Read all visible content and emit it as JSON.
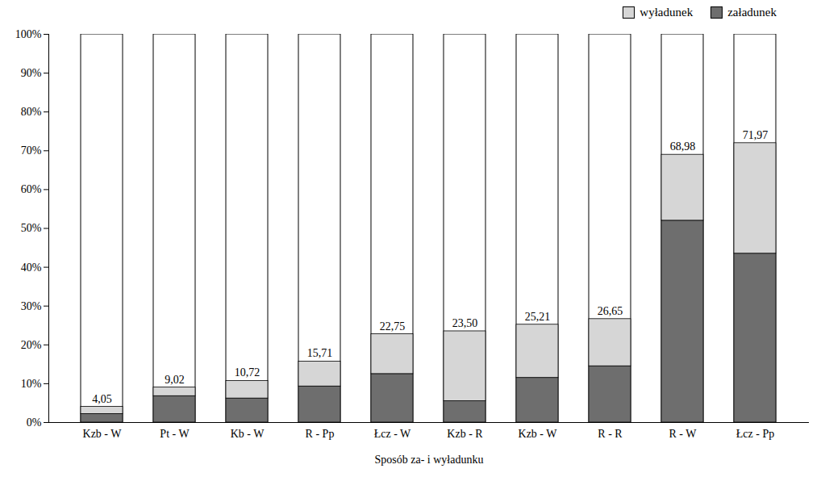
{
  "chart_data": {
    "type": "bar",
    "stacked": true,
    "x_label": "Sposób za- i wyładunku",
    "categories": [
      "Kzb - W",
      "Pt - W",
      "Kb - W",
      "R - Pp",
      "Łcz - W",
      "Kzb - R",
      "Kzb - W",
      "R - R",
      "R - W",
      "Łcz - Pp"
    ],
    "series": [
      {
        "name": "załadunek",
        "color": "#6e6e6e",
        "values": [
          2.2,
          6.8,
          6.2,
          9.3,
          12.5,
          5.5,
          11.5,
          14.5,
          52.0,
          43.5
        ]
      },
      {
        "name": "wyładunek",
        "color": "#d6d6d6",
        "values": [
          1.85,
          2.22,
          4.52,
          6.41,
          10.25,
          18.0,
          13.71,
          12.15,
          16.98,
          28.47
        ]
      }
    ],
    "totals": [
      4.05,
      9.02,
      10.72,
      15.71,
      22.75,
      23.5,
      25.21,
      26.65,
      68.98,
      71.97
    ],
    "total_labels": [
      "4,05",
      "9,02",
      "10,72",
      "15,71",
      "22,75",
      "23,50",
      "25,21",
      "26,65",
      "68,98",
      "71,97"
    ],
    "ylim": [
      0,
      100
    ],
    "yticks": [
      {
        "value": 0,
        "label": "0%"
      },
      {
        "value": 10,
        "label": "10%"
      },
      {
        "value": 20,
        "label": "20%"
      },
      {
        "value": 30,
        "label": "30%"
      },
      {
        "value": 40,
        "label": "40%"
      },
      {
        "value": 50,
        "label": "50%"
      },
      {
        "value": 60,
        "label": "60%"
      },
      {
        "value": 70,
        "label": "70%"
      },
      {
        "value": 80,
        "label": "80%"
      },
      {
        "value": 90,
        "label": "90%"
      },
      {
        "value": 100,
        "label": "100%"
      }
    ],
    "grid": false,
    "legend": "top right"
  }
}
